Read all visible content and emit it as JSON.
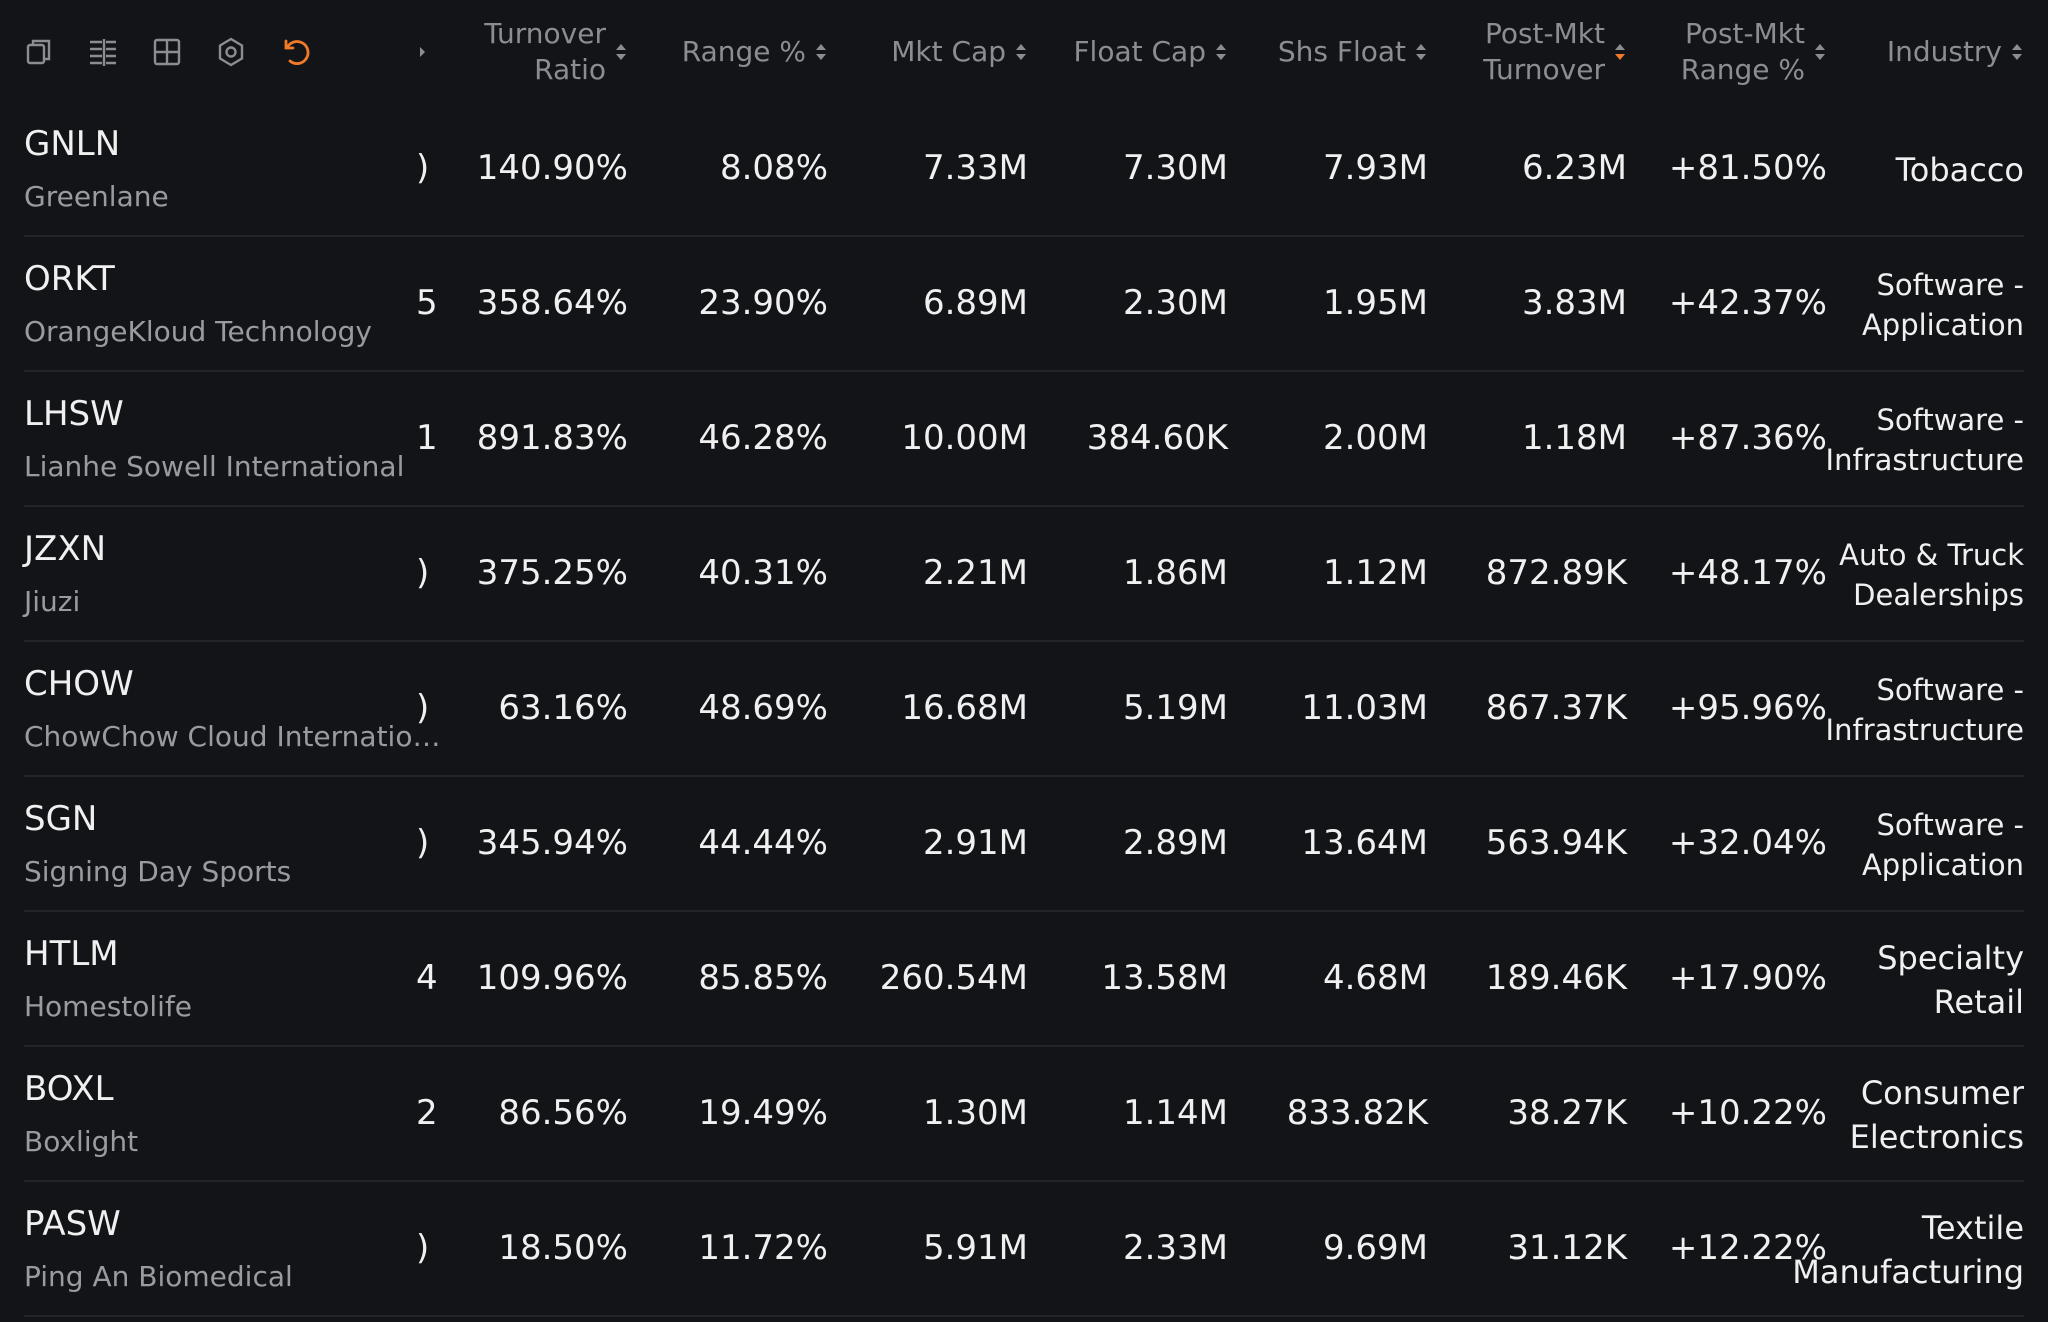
{
  "columns": [
    "Turnover Ratio",
    "Range %",
    "Mkt Cap",
    "Float Cap",
    "Shs Float",
    "Post-Mkt Turnover",
    "Post-Mkt Range %",
    "Industry"
  ],
  "active_sort": {
    "column": 5,
    "direction": "desc"
  },
  "rows": [
    {
      "ticker": "GNLN",
      "name": "Greenlane",
      "clip": ")",
      "cells": [
        "140.90%",
        "8.08%",
        "7.33M",
        "7.30M",
        "7.93M",
        "6.23M",
        "+81.50%"
      ],
      "industry": "Tobacco"
    },
    {
      "ticker": "ORKT",
      "name": "OrangeKloud Technology",
      "clip": "5",
      "cells": [
        "358.64%",
        "23.90%",
        "6.89M",
        "2.30M",
        "1.95M",
        "3.83M",
        "+42.37%"
      ],
      "industry": "Software - Application"
    },
    {
      "ticker": "LHSW",
      "name": "Lianhe Sowell International",
      "clip": "1",
      "cells": [
        "891.83%",
        "46.28%",
        "10.00M",
        "384.60K",
        "2.00M",
        "1.18M",
        "+87.36%"
      ],
      "industry": "Software - Infrastructure"
    },
    {
      "ticker": "JZXN",
      "name": "Jiuzi",
      "clip": ")",
      "cells": [
        "375.25%",
        "40.31%",
        "2.21M",
        "1.86M",
        "1.12M",
        "872.89K",
        "+48.17%"
      ],
      "industry": "Auto & Truck Dealerships"
    },
    {
      "ticker": "CHOW",
      "name": "ChowChow Cloud Internatio…",
      "clip": ")",
      "cells": [
        "63.16%",
        "48.69%",
        "16.68M",
        "5.19M",
        "11.03M",
        "867.37K",
        "+95.96%"
      ],
      "industry": "Software - Infrastructure"
    },
    {
      "ticker": "SGN",
      "name": "Signing Day Sports",
      "clip": ")",
      "cells": [
        "345.94%",
        "44.44%",
        "2.91M",
        "2.89M",
        "13.64M",
        "563.94K",
        "+32.04%"
      ],
      "industry": "Software - Application"
    },
    {
      "ticker": "HTLM",
      "name": "Homestolife",
      "clip": "4",
      "cells": [
        "109.96%",
        "85.85%",
        "260.54M",
        "13.58M",
        "4.68M",
        "189.46K",
        "+17.90%"
      ],
      "industry": "Specialty Retail"
    },
    {
      "ticker": "BOXL",
      "name": "Boxlight",
      "clip": "2",
      "cells": [
        "86.56%",
        "19.49%",
        "1.30M",
        "1.14M",
        "833.82K",
        "38.27K",
        "+10.22%"
      ],
      "industry": "Consumer Electronics"
    },
    {
      "ticker": "PASW",
      "name": "Ping An Biomedical",
      "clip": ")",
      "cells": [
        "18.50%",
        "11.72%",
        "5.91M",
        "2.33M",
        "9.69M",
        "31.12K",
        "+12.22%"
      ],
      "industry": "Textile Manufacturing"
    }
  ]
}
